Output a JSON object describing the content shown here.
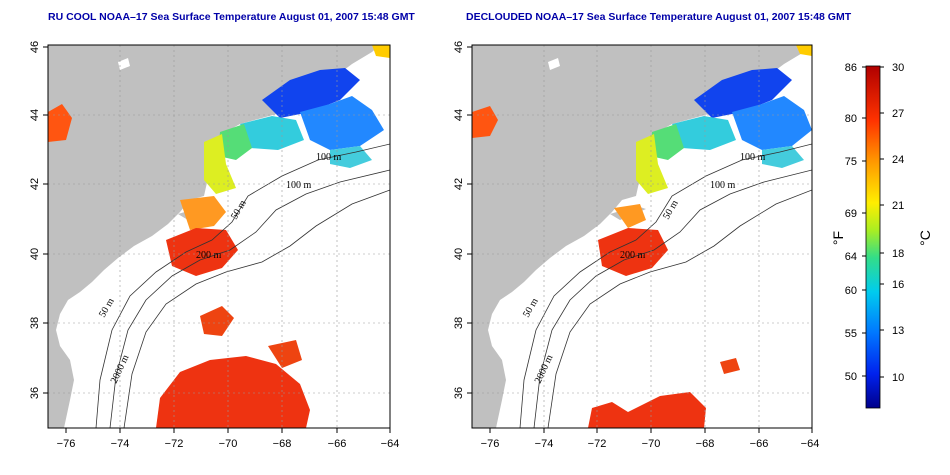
{
  "panels": [
    {
      "id": "left",
      "title": "RU COOL NOAA–17 Sea Surface Temperature August 01, 2007 15:48 GMT",
      "contour_labels": [
        "100 m",
        "100 m",
        "50 m",
        "200 m",
        "50 m",
        "2000 m"
      ]
    },
    {
      "id": "right",
      "title": "DECLOUDED NOAA–17 Sea Surface Temperature August 01, 2007 15:48 GMT",
      "contour_labels": [
        "100 m",
        "100 m",
        "50 m",
        "200 m",
        "50 m",
        "2000 m"
      ]
    }
  ],
  "axes": {
    "x_ticks": [
      "−76",
      "−74",
      "−72",
      "−70",
      "−68",
      "−66",
      "−64"
    ],
    "y_ticks": [
      "36",
      "38",
      "40",
      "42",
      "44",
      "46"
    ]
  },
  "colorbar": {
    "fahrenheit_label": "°F",
    "celsius_label": "°C",
    "fahrenheit_ticks": [
      "86",
      "80",
      "75",
      "69",
      "64",
      "60",
      "55",
      "50"
    ],
    "celsius_ticks": [
      "30",
      "27",
      "24",
      "21",
      "18",
      "16",
      "13",
      "10"
    ],
    "colors": [
      "#00008b",
      "#0033ff",
      "#00aaff",
      "#00e0e0",
      "#33dd66",
      "#ccee22",
      "#ffee00",
      "#ff9900",
      "#ff3300",
      "#b40000"
    ]
  },
  "colors": {
    "land": "#c0c0c0",
    "title": "#0000a8"
  }
}
